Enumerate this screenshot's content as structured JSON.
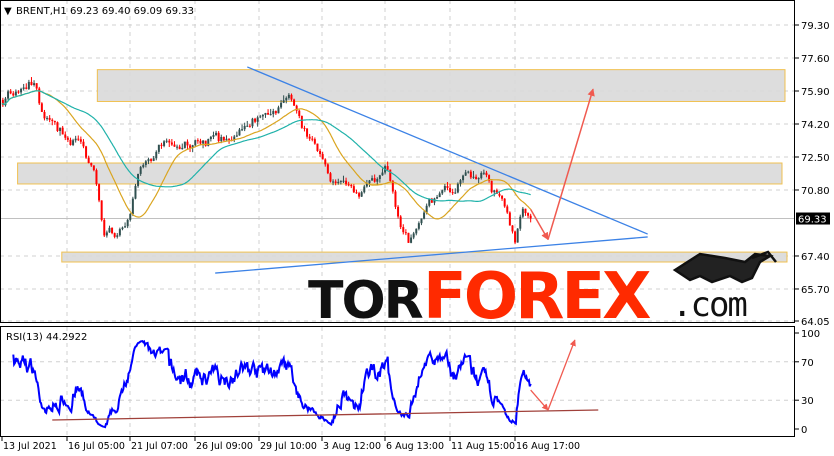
{
  "header": {
    "symbol_label": "BRENT,H1",
    "ohlc": "69.23 69.40 69.09 69.33",
    "triangle_icon": "triangle-down-icon"
  },
  "rsi_header": {
    "label": "RSI(13) 44.2922"
  },
  "logo": {
    "part1": "TOR",
    "part2": "FOREX",
    "part3": ".com",
    "emblem": "bull-icon"
  },
  "colors": {
    "bull": "#2f4f4f",
    "bear": "#ff0000",
    "ma_fast": "#daa520",
    "ma_slow": "#20b2aa",
    "rsi": "#0000ff",
    "trendline": "#3c82e6",
    "zone_fill": "#d9d9d9",
    "zone_border": "#f0c050",
    "arrow": "#f05a50",
    "rsi_support": "#a0403a",
    "logo_dark": "#111111",
    "logo_red": "#ff2a00"
  },
  "chart_data": {
    "type": "candlestick",
    "title": "BRENT,H1",
    "price_axis": {
      "ticks": [
        "79.30",
        "77.60",
        "75.90",
        "74.20",
        "72.50",
        "70.80",
        "67.40",
        "65.70",
        "64.05"
      ],
      "range": [
        64.05,
        80.2
      ],
      "current_price": "69.33"
    },
    "time_axis": {
      "ticks": [
        "13 Jul 2021",
        "16 Jul 05:00",
        "21 Jul 07:00",
        "26 Jul 09:00",
        "29 Jul 10:00",
        "3 Aug 12:00",
        "6 Aug 13:00",
        "11 Aug 15:00",
        "16 Aug 17:00"
      ]
    },
    "grid": true,
    "price_path": [
      [
        "13 Jul 03:00",
        75.44
      ],
      [
        "14 Jul 14:00",
        76.47
      ],
      [
        "15 Jul 02:00",
        74.41
      ],
      [
        "16 Jul 18:00",
        73.38
      ],
      [
        "19 Jul 12:00",
        71.31
      ],
      [
        "19 Jul 23:00",
        68.22
      ],
      [
        "20 Jul 17:00",
        68.48
      ],
      [
        "21 Jul 04:00",
        69.77
      ],
      [
        "21 Jul 14:00",
        71.57
      ],
      [
        "22 Jul 14:00",
        72.86
      ],
      [
        "26 Jul 12:00",
        73.12
      ],
      [
        "28 Jul 10:00",
        73.89
      ],
      [
        "29 Jul 22:00",
        74.66
      ],
      [
        "30 Jul 20:00",
        75.44
      ],
      [
        "2 Aug 14:00",
        73.89
      ],
      [
        "3 Aug 07:00",
        72.86
      ],
      [
        "3 Aug 19:00",
        71.31
      ],
      [
        "4 Aug 12:00",
        71.06
      ],
      [
        "5 Aug 05:00",
        70.28
      ],
      [
        "6 Aug 05:00",
        71.57
      ],
      [
        "6 Aug 13:00",
        72.09
      ],
      [
        "9 Aug 02:00",
        69.51
      ],
      [
        "9 Aug 14:00",
        67.96
      ],
      [
        "10 Aug 07:00",
        69.77
      ],
      [
        "11 Aug 01:00",
        70.54
      ],
      [
        "11 Aug 19:00",
        70.8
      ],
      [
        "12 Aug 07:00",
        71.57
      ],
      [
        "13 Aug 00:00",
        71.31
      ],
      [
        "13 Aug 17:00",
        70.8
      ],
      [
        "16 Aug 05:00",
        69.51
      ],
      [
        "16 Aug 17:00",
        68.22
      ],
      [
        "17 Aug 02:00",
        69.77
      ],
      [
        "17 Aug 10:00",
        69.33
      ]
    ],
    "moving_averages": [
      {
        "color": "ma_fast"
      },
      {
        "color": "ma_slow"
      }
    ],
    "zones": [
      {
        "from": "19 Jul 14:00",
        "price_low": 75.36,
        "price_high": 77.0
      },
      {
        "from": "13 Jul 18:00",
        "price_low": 71.11,
        "price_high": 72.19
      },
      {
        "from": "15 Jul 21:00",
        "price_low": 67.09,
        "price_high": 67.6
      }
    ],
    "trendlines": [
      {
        "from": [
          "28 Jul 19:00",
          77.14
        ],
        "to": [
          "25 Aug 01:00",
          68.53
        ]
      },
      {
        "from": [
          "27 Jul 06:00",
          66.52
        ],
        "to": [
          "25 Aug 01:00",
          68.38
        ]
      }
    ],
    "forecast_arrows": [
      {
        "from": [
          "17 Aug 10:00",
          69.8
        ],
        "to": [
          "18 Aug 06:00",
          68.25
        ]
      },
      {
        "from": [
          "18 Aug 06:00",
          68.25
        ],
        "to": [
          "20 Aug 10:00",
          76.0
        ]
      }
    ],
    "rsi": {
      "period": 13,
      "value": 44.2922,
      "levels": [
        "100",
        "70",
        "30",
        "0"
      ],
      "support_line": {
        "from": [
          "15 Jul 10:00",
          9.4
        ],
        "to": [
          "20 Aug 16:00",
          19.8
        ]
      },
      "forecast_arrows": [
        {
          "from": [
            "17 Aug 10:00",
            40.6
          ],
          "to": [
            "18 Aug 06:00",
            19.8
          ]
        },
        {
          "from": [
            "18 Aug 06:00",
            19.8
          ],
          "to": [
            "19 Aug 13:00",
            92.7
          ]
        }
      ]
    }
  }
}
